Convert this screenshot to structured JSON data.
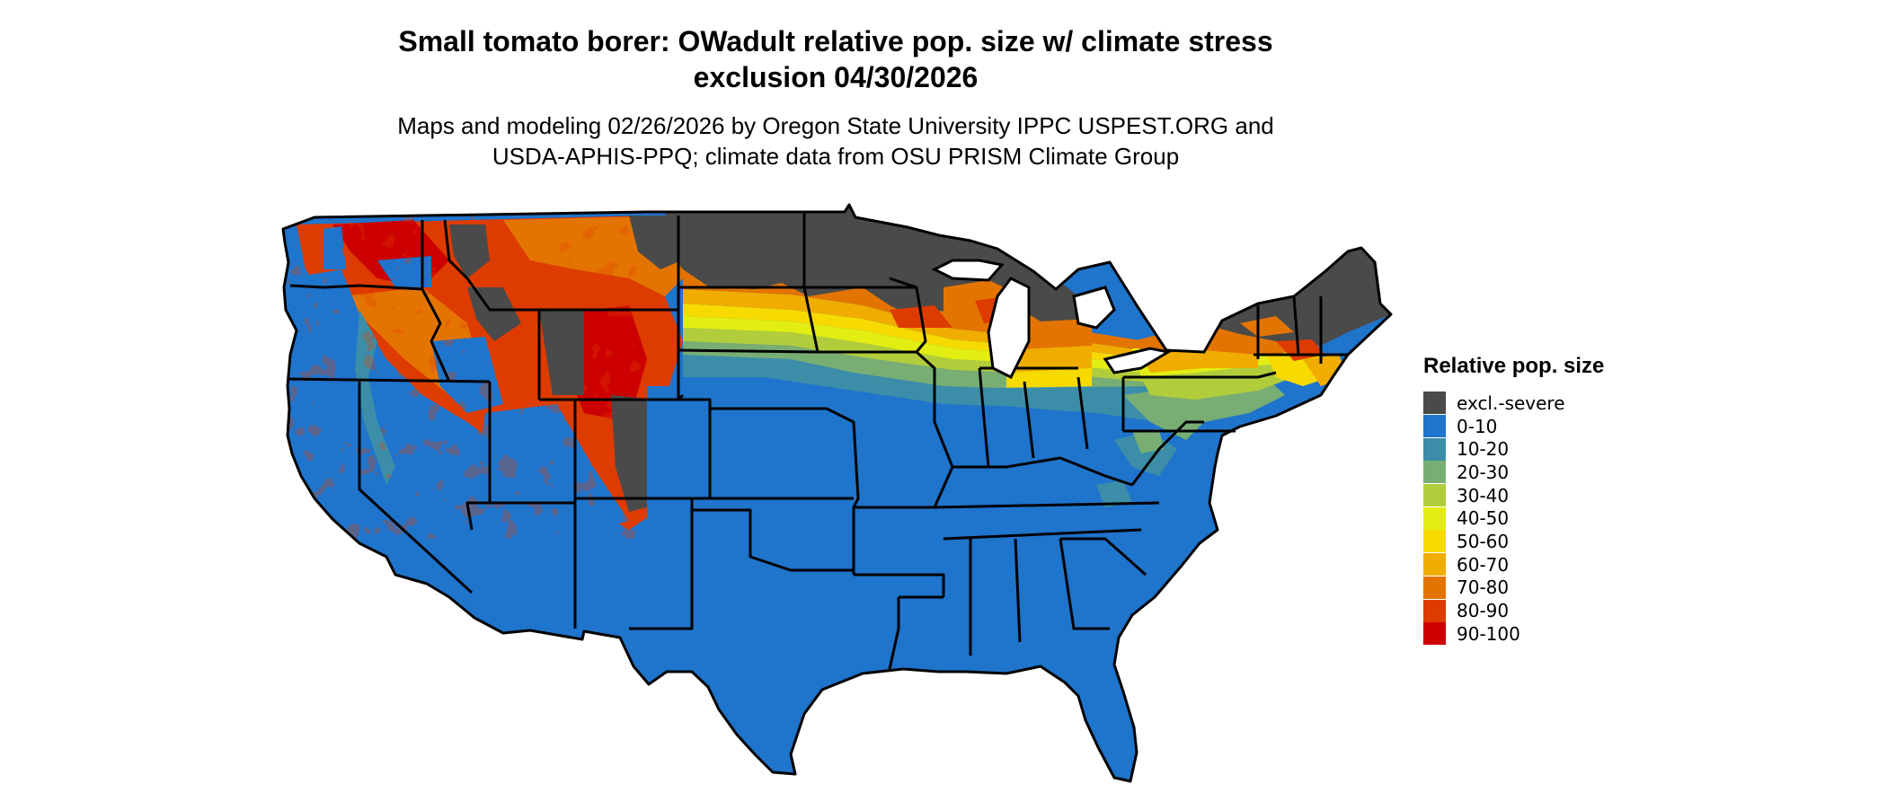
{
  "title": "Small tomato borer: OWadult relative pop. size w/ climate stress\nexclusion 04/30/2026",
  "subtitle": "Maps and modeling 02/26/2026 by Oregon State University IPPC USPEST.ORG and\nUSDA-APHIS-PPQ; climate data from OSU PRISM Climate Group",
  "legend": {
    "title": "Relative pop. size",
    "items": [
      {
        "label": "excl.-severe",
        "color": "#4a4a4a"
      },
      {
        "label": "0-10",
        "color": "#1f74cc"
      },
      {
        "label": "10-20",
        "color": "#3c8ea8"
      },
      {
        "label": "20-30",
        "color": "#78ae74"
      },
      {
        "label": "30-40",
        "color": "#b2cd3b"
      },
      {
        "label": "40-50",
        "color": "#e2ee12"
      },
      {
        "label": "50-60",
        "color": "#f7db00"
      },
      {
        "label": "60-70",
        "color": "#f0ad00"
      },
      {
        "label": "70-80",
        "color": "#e47400"
      },
      {
        "label": "80-90",
        "color": "#dd3b00"
      },
      {
        "label": "90-100",
        "color": "#cc0000"
      }
    ]
  }
}
